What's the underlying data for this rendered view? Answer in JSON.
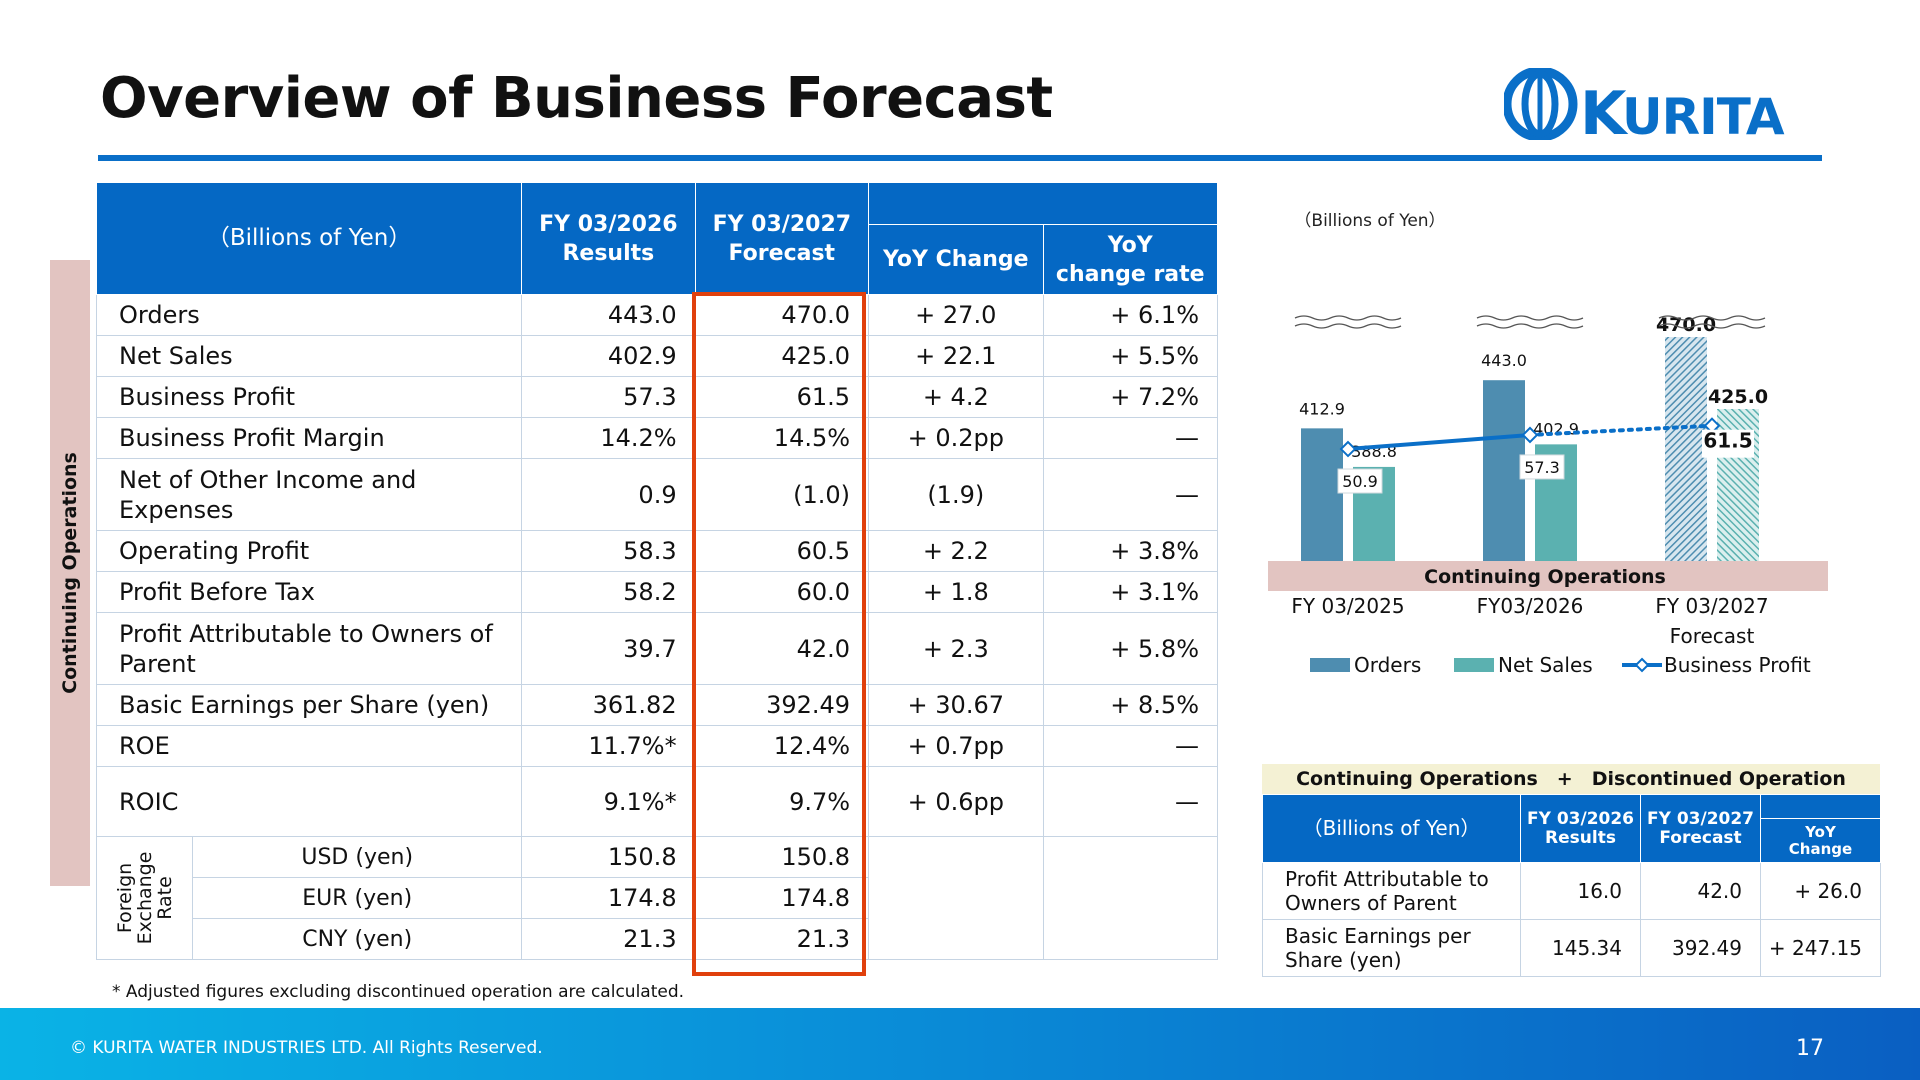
{
  "page": {
    "title": "Overview of Business Forecast",
    "logo_text": "KURITA",
    "side_label": "Continuing Operations",
    "footnote": "* Adjusted figures excluding discontinued operation are calculated.",
    "copyright": "© KURITA WATER INDUSTRIES LTD. All Rights Reserved.",
    "page_number": "17"
  },
  "colors": {
    "brand_blue": "#0568c4",
    "forecast_box": "#e0400d",
    "orders": "#4e8db0",
    "net_sales": "#5bb1b0",
    "business_profit": "#0a6fc8",
    "side_band": "#e2c4c1"
  },
  "main_table": {
    "header": {
      "units": "（Billions of Yen）",
      "col_results_1": "FY 03/2026",
      "col_results_2": "Results",
      "col_forecast_1": "FY 03/2027",
      "col_forecast_2": "Forecast",
      "col_yoy_change": "YoY Change",
      "col_yoy_rate_1": "YoY",
      "col_yoy_rate_2": "change rate"
    },
    "rows": [
      {
        "label": "Orders",
        "results": "443.0",
        "forecast": "470.0",
        "yoy": "+ 27.0",
        "rate": "+ 6.1%"
      },
      {
        "label": "Net Sales",
        "results": "402.9",
        "forecast": "425.0",
        "yoy": "+ 22.1",
        "rate": "+ 5.5%"
      },
      {
        "label": "Business Profit",
        "results": "57.3",
        "forecast": "61.5",
        "yoy": "+ 4.2",
        "rate": "+ 7.2%"
      },
      {
        "label": "Business Profit Margin",
        "results": "14.2%",
        "forecast": "14.5%",
        "yoy": "+ 0.2pp",
        "rate": "—"
      },
      {
        "label": "Net of Other Income and Expenses",
        "results": "0.9",
        "forecast": "(1.0)",
        "yoy": "(1.9)",
        "rate": "—"
      },
      {
        "label": "Operating Profit",
        "results": "58.3",
        "forecast": "60.5",
        "yoy": "+ 2.2",
        "rate": "+ 3.8%"
      },
      {
        "label": "Profit Before Tax",
        "results": "58.2",
        "forecast": "60.0",
        "yoy": "+ 1.8",
        "rate": "+ 3.1%"
      },
      {
        "label": "Profit Attributable to Owners of Parent",
        "results": "39.7",
        "forecast": "42.0",
        "yoy": "+ 2.3",
        "rate": "+ 5.8%"
      },
      {
        "label": "Basic Earnings per Share (yen)",
        "results": "361.82",
        "forecast": "392.49",
        "yoy": "+ 30.67",
        "rate": "+ 8.5%"
      },
      {
        "label": "ROE",
        "results": "11.7%*",
        "forecast": "12.4%",
        "yoy": "+ 0.7pp",
        "rate": "—"
      },
      {
        "label": "ROIC",
        "results": "9.1%*",
        "forecast": "9.7%",
        "yoy": "+ 0.6pp",
        "rate": "—"
      }
    ],
    "fx_label": "Foreign Exchange Rate",
    "fx_rows": [
      {
        "label": "USD (yen)",
        "results": "150.8",
        "forecast": "150.8"
      },
      {
        "label": "EUR (yen)",
        "results": "174.8",
        "forecast": "174.8"
      },
      {
        "label": "CNY (yen)",
        "results": "21.3",
        "forecast": "21.3"
      }
    ]
  },
  "chart_data": {
    "type": "bar",
    "units_label": "（Billions of Yen）",
    "categories": [
      "FY 03/2025",
      "FY03/2026",
      "FY 03/2027 Forecast"
    ],
    "series": [
      {
        "name": "Orders",
        "type": "bar",
        "values": [
          412.9,
          443.0,
          470.0
        ],
        "labels": [
          "412.9",
          "443.0",
          "470.0"
        ]
      },
      {
        "name": "Net Sales",
        "type": "bar",
        "values": [
          388.8,
          402.9,
          425.0
        ],
        "labels": [
          "388.8",
          "402.9",
          "425.0"
        ]
      },
      {
        "name": "Business Profit",
        "type": "line",
        "values": [
          50.9,
          57.3,
          61.5
        ],
        "labels": [
          "50.9",
          "57.3",
          "61.5"
        ]
      }
    ],
    "forecast_category_index": 2,
    "axis_break": true,
    "band_label": "Continuing Operations",
    "legend_position": "bottom",
    "grid": false
  },
  "sub_table": {
    "banner": "Continuing Operations　+　Discontinued Operation",
    "header": {
      "units": "（Billions of Yen）",
      "col_results_1": "FY 03/2026",
      "col_results_2": "Results",
      "col_forecast_1": "FY 03/2027",
      "col_forecast_2": "Forecast",
      "col_yoy_1": "YoY",
      "col_yoy_2": "Change"
    },
    "rows": [
      {
        "label": "Profit Attributable to Owners of Parent",
        "results": "16.0",
        "forecast": "42.0",
        "yoy": "+ 26.0"
      },
      {
        "label": "Basic Earnings per Share (yen)",
        "results": "145.34",
        "forecast": "392.49",
        "yoy": "+ 247.15"
      }
    ]
  }
}
